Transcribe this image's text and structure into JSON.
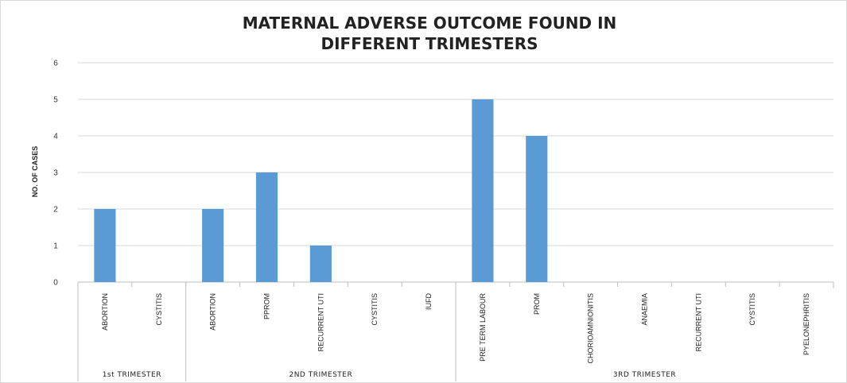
{
  "chart_data": {
    "type": "bar",
    "title_lines": [
      "MATERNAL ADVERSE OUTCOME FOUND IN",
      "DIFFERENT TRIMESTERS"
    ],
    "ylabel": "NO. OF CASES",
    "ylim": [
      0,
      6
    ],
    "yticks": [
      "0",
      "1",
      "2",
      "3",
      "4",
      "5",
      "6"
    ],
    "grid": true,
    "bar_color": "#5b9bd5",
    "groups": [
      {
        "name": "1st TRIMESTER",
        "categories": [
          "ABORTION",
          "CYSTITIS"
        ],
        "values": [
          2,
          0
        ]
      },
      {
        "name": "2ND TRIMESTER",
        "categories": [
          "ABORTION",
          "PPROM",
          "RECURRENT UTI",
          "CYSTITIS",
          "IUFD"
        ],
        "values": [
          2,
          3,
          1,
          0,
          0
        ]
      },
      {
        "name": "3RD TRIMESTER",
        "categories": [
          "PRE TERM LABOUR",
          "PROM",
          "CHORIOAMNIONITIS",
          "ANAEMIA",
          "RECURRENT UTI",
          "CYSTITIS",
          "PYELONEPHRITIS"
        ],
        "values": [
          5,
          4,
          0,
          0,
          0,
          0,
          0
        ]
      }
    ]
  }
}
